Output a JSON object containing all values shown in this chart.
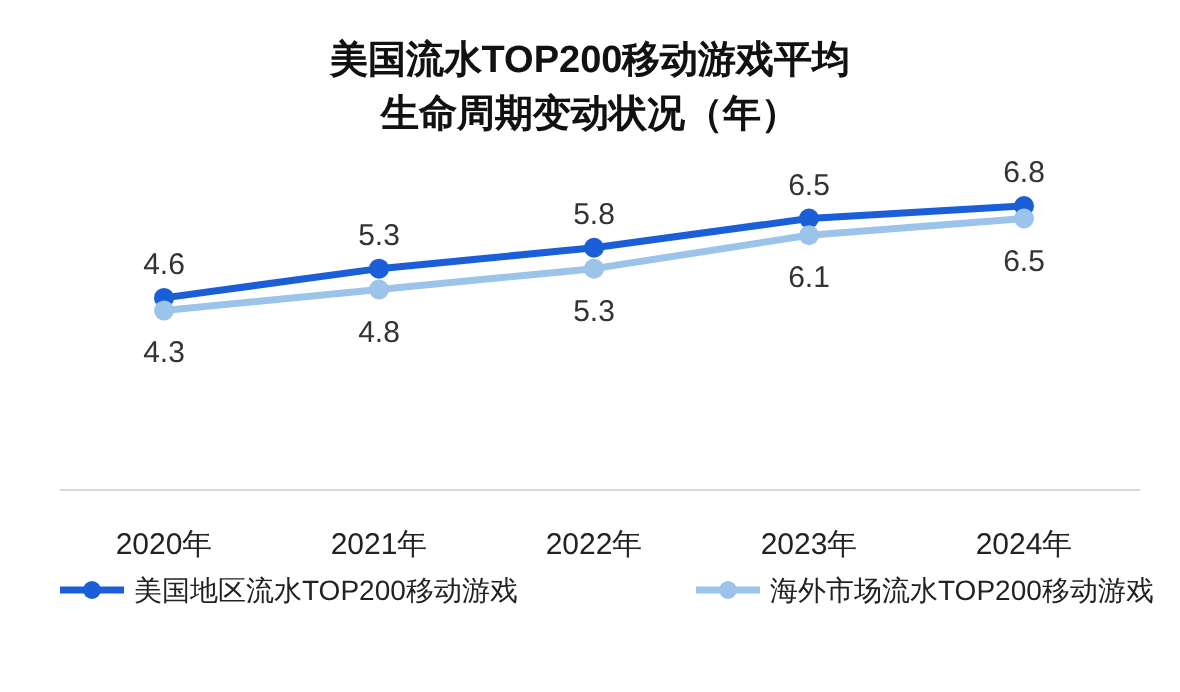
{
  "chart_data": {
    "type": "line",
    "title": "美国流水TOP200移动游戏平均生命周期变动状况（年）",
    "categories": [
      "2020年",
      "2021年",
      "2022年",
      "2023年",
      "2024年"
    ],
    "series": [
      {
        "name": "美国地区流水TOP200移动游戏",
        "color": "#1a5fd8",
        "values": [
          4.6,
          5.3,
          5.8,
          6.5,
          6.8
        ]
      },
      {
        "name": "海外市场流水TOP200移动游戏",
        "color": "#9cc3ea",
        "values": [
          4.3,
          4.8,
          5.3,
          6.1,
          6.5
        ]
      }
    ],
    "data_labels": true,
    "marker": "circle",
    "line_style": "solid",
    "legend": "bottom"
  }
}
